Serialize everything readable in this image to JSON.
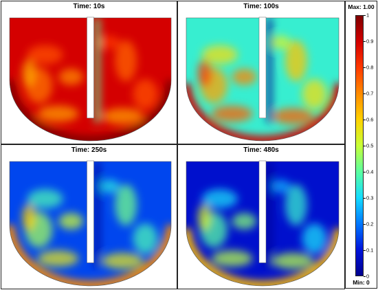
{
  "panels": [
    {
      "title": "Time: 10s",
      "fill_level": 0.9
    },
    {
      "title": "Time: 100s",
      "fill_level": 0.35
    },
    {
      "title": "Time: 250s",
      "fill_level": 0.15
    },
    {
      "title": "Time: 480s",
      "fill_level": 0.08
    }
  ],
  "colorbar": {
    "max_label": "Max: 1.00",
    "min_label": "Min: 0",
    "ticks": [
      "1",
      "0.9",
      "0.8",
      "0.7",
      "0.6",
      "0.5",
      "0.4",
      "0.3",
      "0.2",
      "0.1",
      "0"
    ],
    "colors": [
      "#7f0000",
      "#d40000",
      "#ff3a00",
      "#ff8c00",
      "#ffd200",
      "#c8ff37",
      "#5affa0",
      "#14dcff",
      "#0078ff",
      "#0014dc",
      "#00008f"
    ]
  }
}
